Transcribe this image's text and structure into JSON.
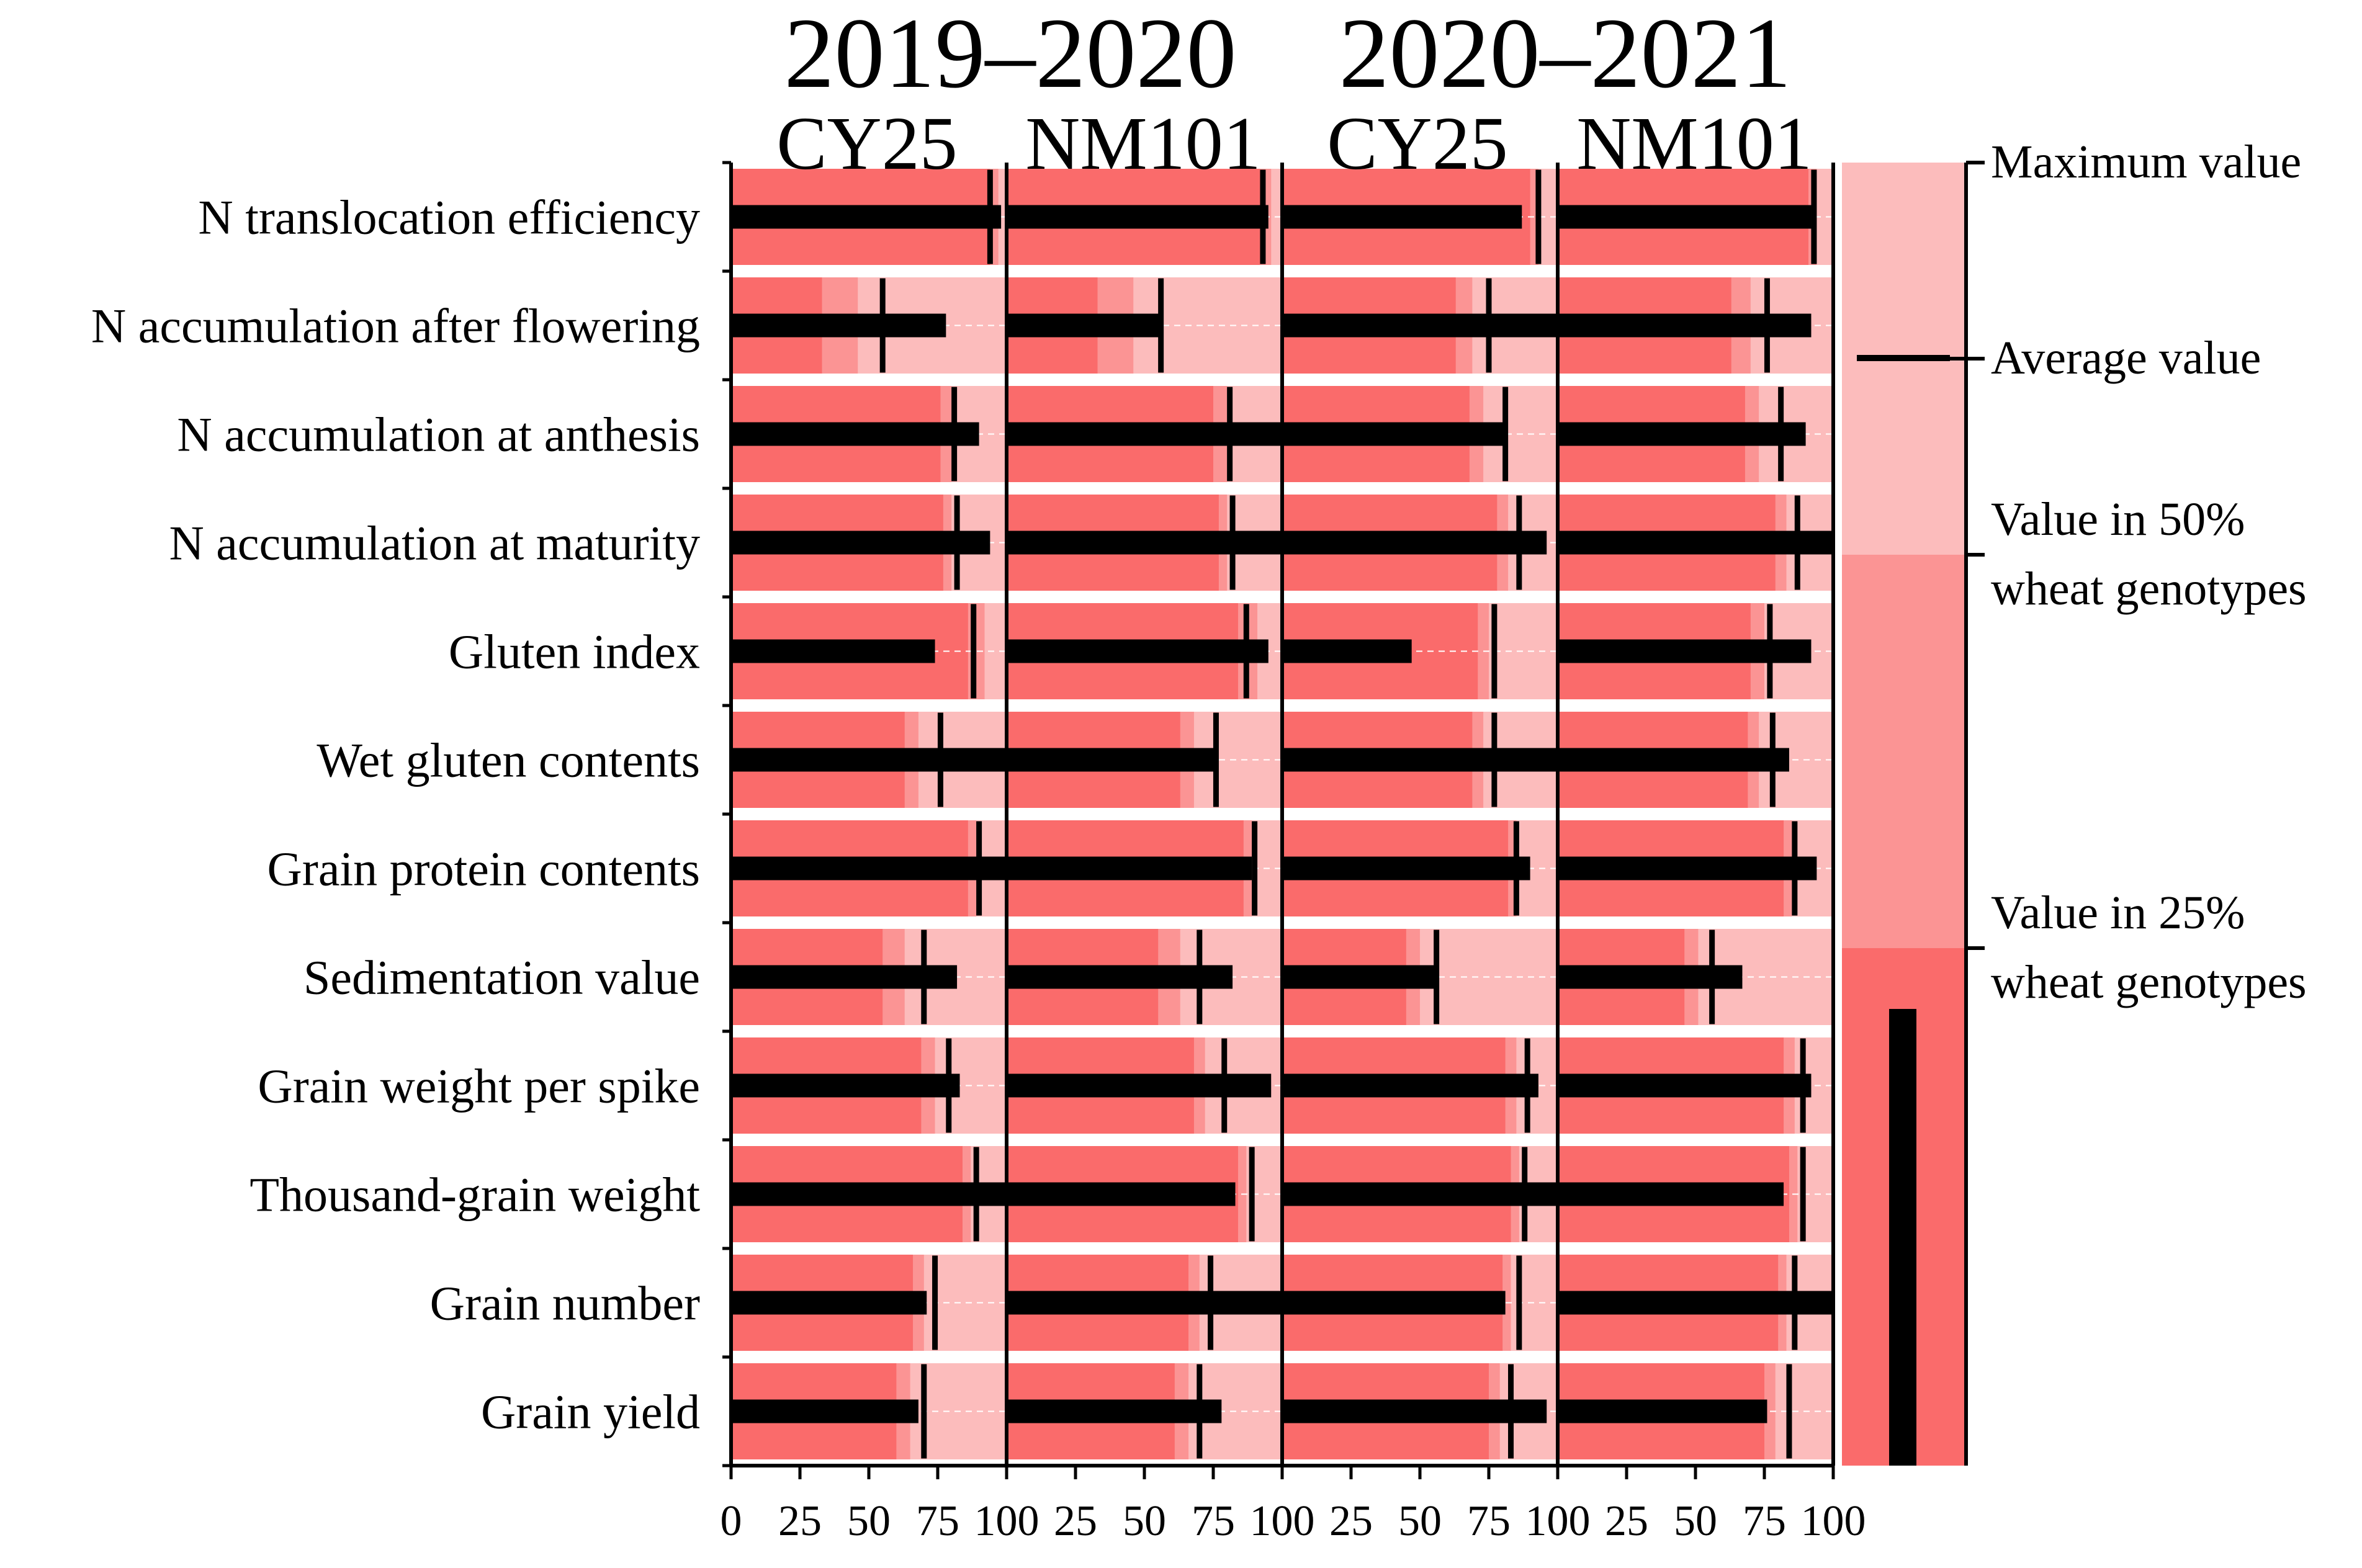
{
  "chart_data": {
    "type": "bar",
    "subtype": "bullet",
    "years": [
      "2019–2020",
      "2020–2021"
    ],
    "panels": [
      {
        "year": "2019–2020",
        "cultivar": "CY25"
      },
      {
        "year": "2019–2020",
        "cultivar": "NM101"
      },
      {
        "year": "2020–2021",
        "cultivar": "CY25"
      },
      {
        "year": "2020–2021",
        "cultivar": "NM101"
      }
    ],
    "categories": [
      "N translocation efficiency",
      "N accumulation after flowering",
      "N accumulation at anthesis",
      "N accumulation at maturity",
      "Gluten index",
      "Wet gluten contents",
      "Grain protein contents",
      "Sedimentation value",
      "Grain weight per spike",
      "Thousand-grain weight",
      "Grain number",
      "Grain yield"
    ],
    "x_ticks": [
      "0",
      "25",
      "50",
      "75",
      "100"
    ],
    "xlim": [
      0,
      100
    ],
    "series": [
      {
        "panel": "2019–2020 CY25",
        "value": [
          98,
          78,
          90,
          94,
          74,
          100,
          100,
          82,
          83,
          100,
          71,
          68
        ],
        "average": [
          94,
          55,
          81,
          82,
          88,
          76,
          90,
          70,
          79,
          89,
          74,
          70
        ],
        "q25": [
          94,
          33,
          76,
          77,
          86,
          63,
          86,
          55,
          69,
          84,
          66,
          60
        ],
        "q50": [
          97,
          46,
          80,
          80,
          92,
          68,
          89,
          63,
          74,
          87,
          70,
          65
        ],
        "max": [
          100,
          100,
          100,
          100,
          100,
          100,
          100,
          100,
          100,
          100,
          100,
          100
        ]
      },
      {
        "panel": "2019–2020 NM101",
        "value": [
          95,
          56,
          100,
          100,
          95,
          76,
          89,
          82,
          96,
          83,
          100,
          78
        ],
        "average": [
          93,
          56,
          81,
          82,
          87,
          76,
          90,
          70,
          79,
          89,
          74,
          70
        ],
        "q25": [
          92,
          33,
          75,
          77,
          84,
          63,
          86,
          55,
          68,
          84,
          66,
          61
        ],
        "q50": [
          96,
          46,
          80,
          80,
          91,
          68,
          89,
          63,
          72,
          87,
          70,
          66
        ],
        "max": [
          100,
          100,
          100,
          100,
          100,
          100,
          100,
          100,
          100,
          100,
          100,
          100
        ]
      },
      {
        "panel": "2020–2021 CY25",
        "value": [
          87,
          100,
          81,
          96,
          47,
          100,
          90,
          56,
          93,
          100,
          81,
          96
        ],
        "average": [
          93,
          75,
          81,
          86,
          77,
          77,
          85,
          56,
          89,
          88,
          86,
          83
        ],
        "q25": [
          90,
          63,
          68,
          78,
          71,
          69,
          82,
          45,
          81,
          83,
          80,
          75
        ],
        "q50": [
          93,
          69,
          73,
          82,
          75,
          73,
          85,
          50,
          85,
          86,
          83,
          79
        ],
        "max": [
          100,
          100,
          100,
          100,
          100,
          100,
          100,
          100,
          100,
          100,
          100,
          100
        ]
      },
      {
        "panel": "2020–2021 NM101",
        "value": [
          92,
          92,
          90,
          100,
          92,
          84,
          94,
          67,
          92,
          82,
          100,
          76
        ],
        "average": [
          93,
          76,
          81,
          87,
          77,
          78,
          86,
          56,
          89,
          89,
          86,
          84
        ],
        "q25": [
          91,
          63,
          68,
          79,
          70,
          69,
          82,
          46,
          82,
          84,
          80,
          75
        ],
        "q50": [
          94,
          70,
          73,
          83,
          75,
          73,
          85,
          51,
          86,
          87,
          83,
          79
        ],
        "max": [
          100,
          100,
          100,
          100,
          100,
          100,
          100,
          100,
          100,
          100,
          100,
          100
        ]
      }
    ],
    "colors": {
      "max_band": "#fcbcbc",
      "q50_band": "#fb9494",
      "q25_band": "#fa6b6b",
      "value_bar": "#000000",
      "average_marker": "#000000"
    },
    "legend": {
      "position": "right",
      "items": [
        "Maximum value",
        "Average value",
        "Value in 50% wheat genotypes",
        "Value in 25% wheat genotypes"
      ]
    }
  }
}
